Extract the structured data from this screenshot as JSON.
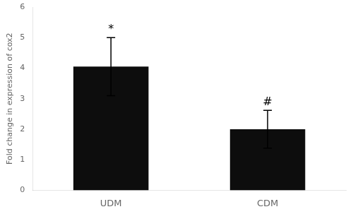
{
  "chart_data": {
    "type": "bar",
    "categories": [
      "UDM",
      "CDM"
    ],
    "values": [
      4.05,
      2.0
    ],
    "errors": [
      0.95,
      0.62
    ],
    "color": "#0d0d0d",
    "ylabel": "Fold change in expression of cox2",
    "annotations": [
      "*",
      "#"
    ],
    "ylim": [
      0,
      6
    ],
    "yticks": [
      0,
      1,
      2,
      3,
      4,
      5,
      6
    ],
    "grid": false
  }
}
